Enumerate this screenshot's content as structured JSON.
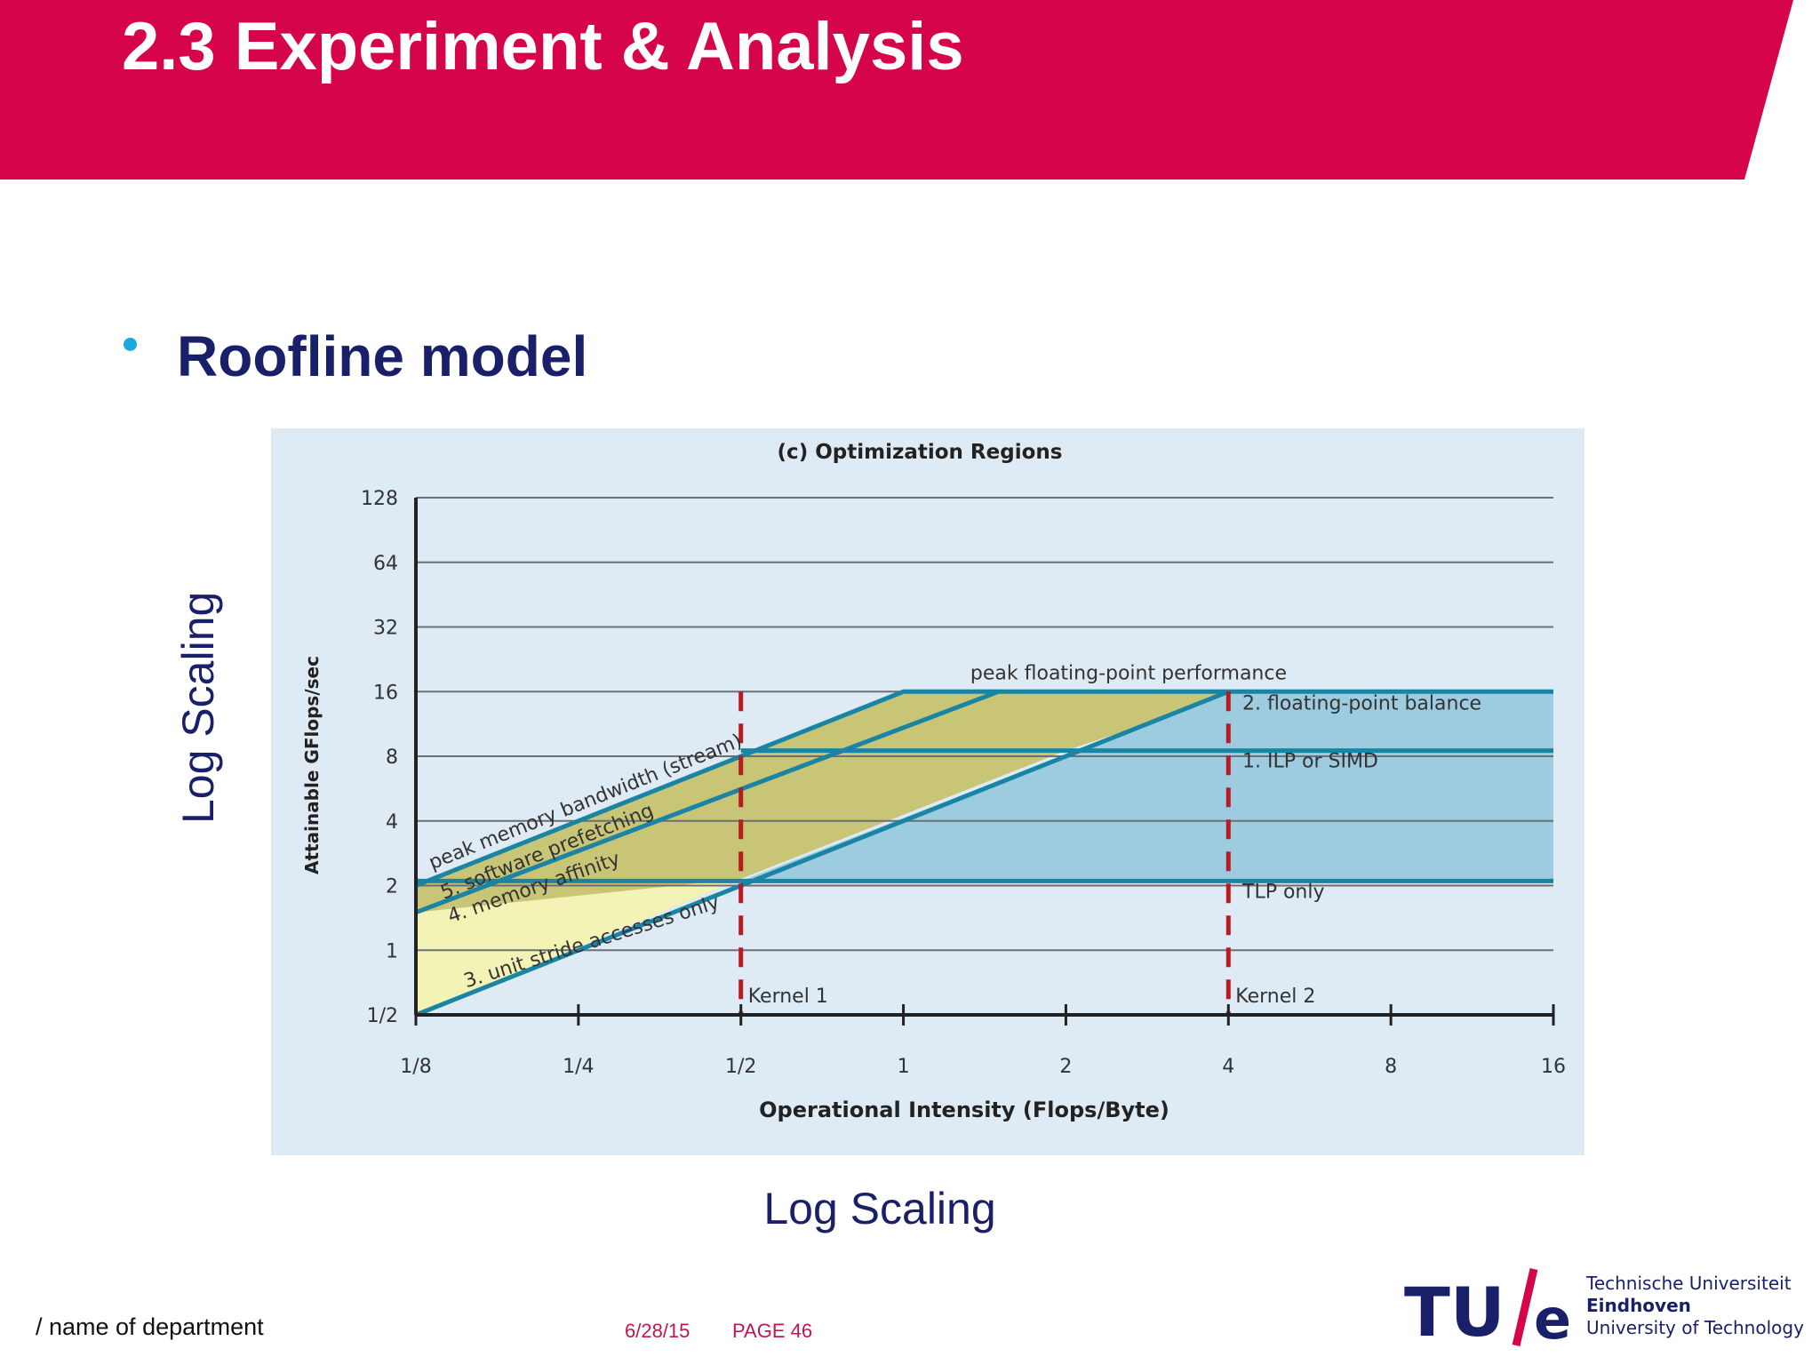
{
  "slide": {
    "title": "2.3 Experiment & Analysis",
    "bullet": "Roofline model",
    "log_scaling_y": "Log Scaling",
    "log_scaling_x": "Log Scaling"
  },
  "footer": {
    "department": "/ name of department",
    "date": "6/28/15",
    "page": "PAGE 46"
  },
  "logo": {
    "mark": "TU/e",
    "line1": "Technische Universiteit",
    "line2": "Eindhoven",
    "line3": "University of Technology"
  },
  "colors": {
    "header": "#d5044b",
    "bullet_text": "#1a1f6a",
    "bullet_dot": "#1ca9e1",
    "footer_meta": "#c4154f",
    "chart_panel": "#deeaf4",
    "roof_line": "#1a84a4",
    "region_yellow": "#f4f3b6",
    "region_olive": "#c8c577",
    "region_blue": "#9dcbdf",
    "kernel_line": "#b81b1f"
  },
  "chart_data": {
    "type": "line",
    "title": "(c) Optimization Regions",
    "xlabel": "Operational Intensity (Flops/Byte)",
    "ylabel": "Attainable GFlops/sec",
    "x_scale": "log2",
    "y_scale": "log2",
    "xlim": [
      0.125,
      16
    ],
    "ylim": [
      0.5,
      128
    ],
    "x_ticks": [
      0.125,
      0.25,
      0.5,
      1,
      2,
      4,
      8,
      16
    ],
    "x_tick_labels": [
      "1/8",
      "1/4",
      "1/2",
      "1",
      "2",
      "4",
      "8",
      "16"
    ],
    "y_ticks": [
      0.5,
      1,
      2,
      4,
      8,
      16,
      32,
      64,
      128
    ],
    "y_tick_labels": [
      "1/2",
      "1",
      "2",
      "4",
      "8",
      "16",
      "32",
      "64",
      "128"
    ],
    "grid": "horizontal",
    "series": [
      {
        "name": "peak memory bandwidth (stream)",
        "points": [
          [
            0.125,
            2
          ],
          [
            1,
            16
          ]
        ]
      },
      {
        "name": "5. software prefetching",
        "points": [
          [
            0.125,
            1.5
          ],
          [
            1.5,
            16
          ]
        ]
      },
      {
        "name": "4. memory affinity",
        "points": [
          [
            0.125,
            1.5
          ],
          [
            1.5,
            16
          ]
        ]
      },
      {
        "name": "3. unit stride accesses only",
        "points": [
          [
            0.125,
            0.5
          ],
          [
            4,
            16
          ]
        ]
      },
      {
        "name": "peak floating-point performance",
        "points": [
          [
            1,
            16
          ],
          [
            16,
            16
          ]
        ]
      },
      {
        "name": "2. floating-point balance",
        "points": [
          [
            0.5,
            8.5
          ],
          [
            16,
            8.5
          ]
        ]
      },
      {
        "name": "1. ILP or SIMD",
        "points": [
          [
            0.5,
            8.5
          ],
          [
            16,
            8.5
          ]
        ]
      },
      {
        "name": "TLP only",
        "points": [
          [
            0.125,
            2.1
          ],
          [
            16,
            2.1
          ]
        ]
      }
    ],
    "kernels": [
      {
        "name": "Kernel 1",
        "x": 0.5
      },
      {
        "name": "Kernel 2",
        "x": 4
      }
    ],
    "line_labels": [
      {
        "text": "peak floating-point performance"
      },
      {
        "text": "2. floating-point balance"
      },
      {
        "text": "1. ILP or SIMD"
      },
      {
        "text": "TLP only"
      },
      {
        "text": "peak memory bandwidth (stream)"
      },
      {
        "text": "5. software prefetching"
      },
      {
        "text": "4. memory affinity"
      },
      {
        "text": "3. unit stride accesses only"
      }
    ]
  }
}
